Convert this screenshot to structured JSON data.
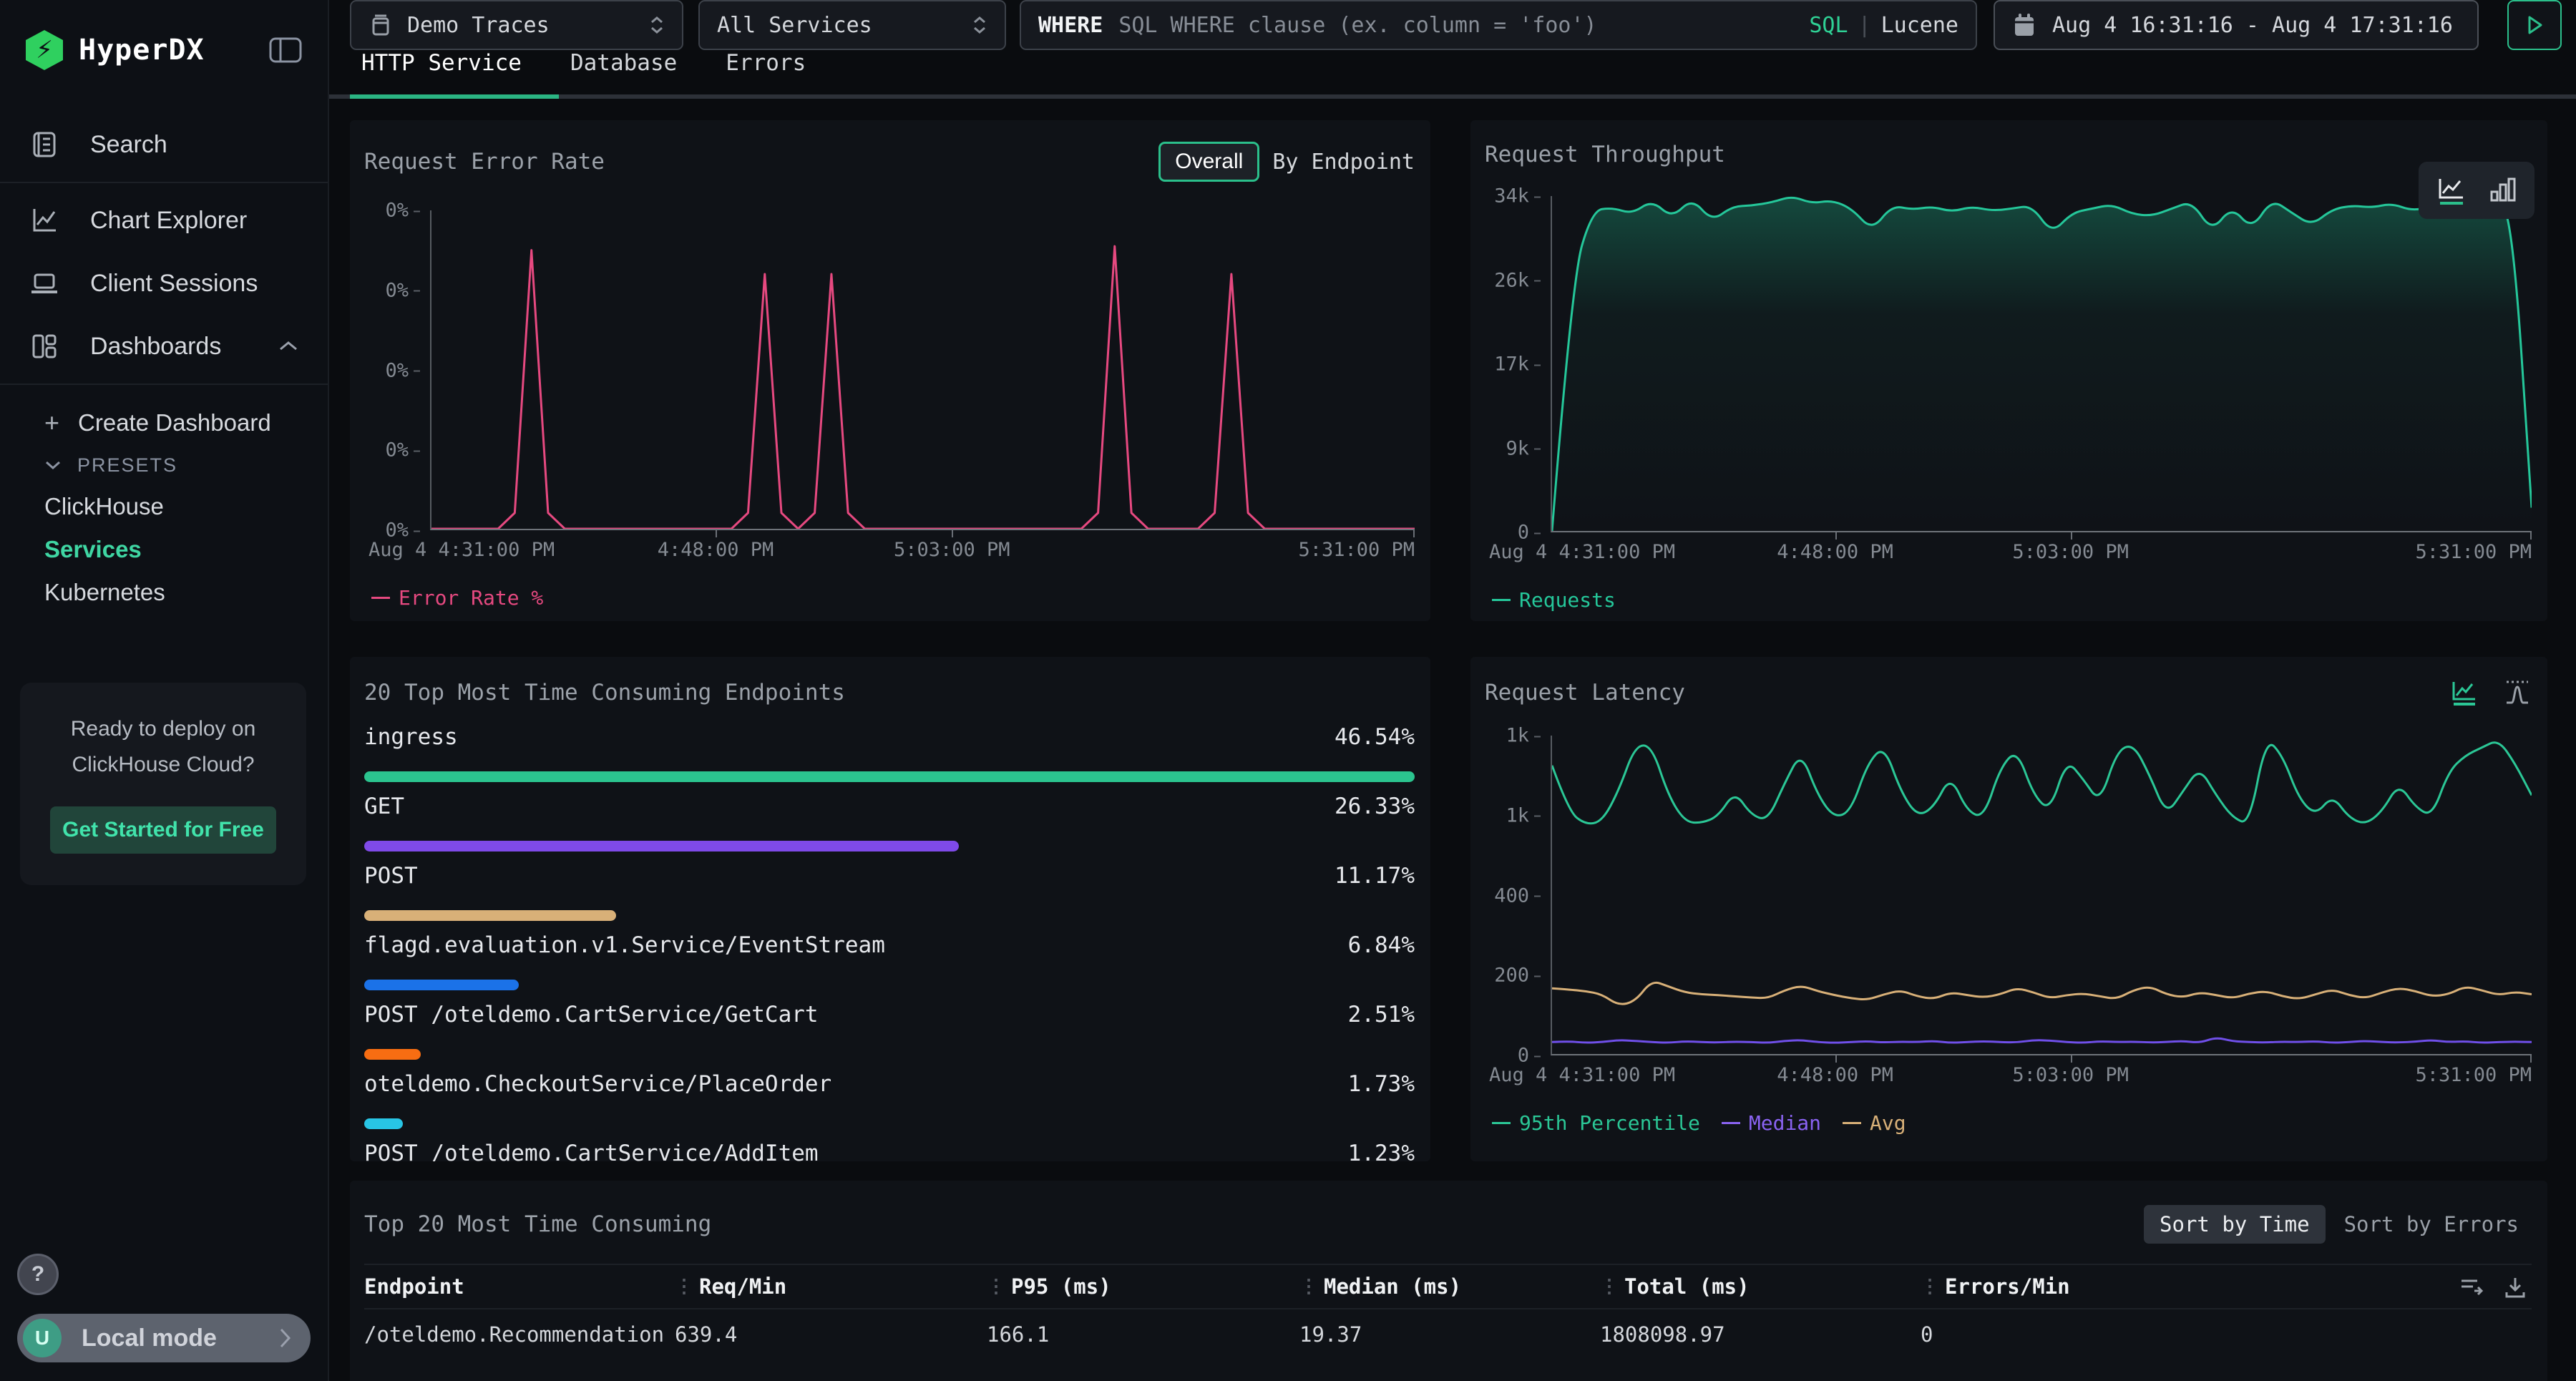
{
  "sidebar": {
    "logo": "HyperDX",
    "nav": [
      {
        "label": "Search"
      },
      {
        "label": "Chart Explorer"
      },
      {
        "label": "Client Sessions"
      },
      {
        "label": "Dashboards"
      }
    ],
    "create_dashboard": "Create Dashboard",
    "presets_label": "PRESETS",
    "presets": [
      {
        "label": "ClickHouse"
      },
      {
        "label": "Services"
      },
      {
        "label": "Kubernetes"
      }
    ],
    "cloud_card": {
      "line1": "Ready to deploy on",
      "line2": "ClickHouse Cloud?",
      "cta": "Get Started for Free"
    },
    "help": "?",
    "user_initial": "U",
    "account_label": "Local mode"
  },
  "topbar": {
    "source": "Demo Traces",
    "service": "All Services",
    "where_label": "WHERE",
    "where_placeholder": "SQL WHERE clause (ex. column = 'foo')",
    "lang_sql": "SQL",
    "lang_sep": "|",
    "lang_lucene": "Lucene",
    "daterange": "Aug 4 16:31:16 - Aug 4 17:31:16"
  },
  "tabs": [
    {
      "label": "HTTP Service"
    },
    {
      "label": "Database"
    },
    {
      "label": "Errors"
    }
  ],
  "panels": {
    "error_rate": {
      "title": "Request Error Rate",
      "toggle": {
        "overall": "Overall",
        "by_endpoint": "By Endpoint"
      },
      "legend": "Error Rate %",
      "color": "#e64980",
      "yticks": [
        "0%",
        "0%",
        "0%",
        "0%",
        "0%"
      ],
      "xticks": [
        "Aug 4 4:31:00 PM",
        "4:48:00 PM",
        "5:03:00 PM",
        "5:31:00 PM"
      ],
      "chart": {
        "ticks": [
          0,
          1,
          2,
          3,
          4
        ],
        "series": [
          {
            "color": "#e64980",
            "smooth": false,
            "values": [
              0,
              0,
              0,
              0,
              0,
              0.2,
              3.5,
              0.2,
              0,
              0,
              0,
              0,
              0,
              0,
              0,
              0,
              0,
              0,
              0,
              0.2,
              3.2,
              0.2,
              0,
              0.2,
              3.2,
              0.2,
              0,
              0,
              0,
              0,
              0,
              0,
              0,
              0,
              0,
              0,
              0,
              0,
              0,
              0,
              0.2,
              3.55,
              0.2,
              0,
              0,
              0,
              0,
              0.2,
              3.2,
              0.2,
              0,
              0,
              0,
              0,
              0,
              0,
              0,
              0,
              0,
              0
            ]
          }
        ]
      }
    },
    "throughput": {
      "title": "Request Throughput",
      "legend": "Requests",
      "color": "#25c79a",
      "yticks": [
        "34k",
        "26k",
        "17k",
        "9k",
        "0"
      ],
      "xticks": [
        "Aug 4 4:31:00 PM",
        "4:48:00 PM",
        "5:03:00 PM",
        "5:31:00 PM"
      ],
      "chart": {
        "ticks": [
          0,
          9,
          17,
          26,
          34
        ],
        "series": [
          {
            "color": "#25c79a",
            "smooth": true,
            "fill": "url(#tp-grad)",
            "values": [
              0,
              26,
              32.6,
              32.9,
              32.3,
              33.6,
              31.9,
              33.8,
              31.6,
              33.0,
              33.1,
              33.4,
              34.1,
              33.3,
              33.6,
              32.8,
              30.7,
              33.1,
              32.7,
              33.0,
              32.5,
              33.0,
              32.6,
              32.8,
              33.1,
              30.4,
              32.4,
              32.8,
              33.2,
              32.3,
              32.1,
              32.8,
              33.5,
              30.6,
              33.0,
              30.8,
              33.7,
              32.4,
              31.2,
              32.7,
              33.1,
              32.9,
              33.3,
              32.6,
              33.0,
              33.2,
              32.9,
              33.2,
              33.0,
              2.5
            ]
          }
        ]
      }
    },
    "endpoints": {
      "title": "20 Top Most Time Consuming Endpoints",
      "items": [
        {
          "label": "ingress",
          "value": "46.54%",
          "width": 100,
          "color": "#2bc48f"
        },
        {
          "label": "GET",
          "value": "26.33%",
          "width": 56.6,
          "color": "#7f4ae8"
        },
        {
          "label": "POST",
          "value": "11.17%",
          "width": 24.0,
          "color": "#d8b078"
        },
        {
          "label": "flagd.evaluation.v1.Service/EventStream",
          "value": "6.84%",
          "width": 14.7,
          "color": "#1b72e8"
        },
        {
          "label": "POST /oteldemo.CartService/GetCart",
          "value": "2.51%",
          "width": 5.4,
          "color": "#f76d12"
        },
        {
          "label": "oteldemo.CheckoutService/PlaceOrder",
          "value": "1.73%",
          "width": 3.7,
          "color": "#28c5e5"
        },
        {
          "label": "POST /oteldemo.CartService/AddItem",
          "value": "1.23%",
          "width": 2.6,
          "color": "#2bc48f"
        }
      ]
    },
    "latency": {
      "title": "Request Latency",
      "yticks": [
        "1k",
        "1k",
        "400",
        "200",
        "0"
      ],
      "xticks": [
        "Aug 4 4:31:00 PM",
        "4:48:00 PM",
        "5:03:00 PM",
        "5:31:00 PM"
      ],
      "legend": [
        {
          "label": "95th Percentile",
          "color": "#2bc796"
        },
        {
          "label": "Median",
          "color": "#8a63f2"
        },
        {
          "label": "Avg",
          "color": "#d8b078"
        }
      ],
      "chart": {
        "ticks": [
          0,
          200,
          400,
          1000,
          1200
        ],
        "series": [
          {
            "color": "#2bc796",
            "smooth": true,
            "values": [
              1125,
              1010,
              930,
              950,
              1060,
              1175,
              1175,
              1050,
              950,
              940,
              990,
              1060,
              1000,
              960,
              1080,
              1160,
              1050,
              980,
              1010,
              1130,
              1175,
              1060,
              990,
              1020,
              1100,
              1010,
              980,
              1120,
              1165,
              1050,
              1010,
              1140,
              1090,
              1030,
              1160,
              1180,
              1100,
              1000,
              1060,
              1120,
              1050,
              980,
              930,
              1195,
              1150,
              1040,
              1000,
              1050,
              980,
              930,
              1010,
              1080,
              1020,
              990,
              1110,
              1150,
              1170,
              1190,
              1130,
              1050
            ]
          },
          {
            "color": "#6f4fe8",
            "smooth": true,
            "values": [
              30,
              32,
              28,
              30,
              35,
              33,
              30,
              28,
              32,
              30,
              29,
              31,
              30,
              28,
              33,
              35,
              30,
              28,
              30,
              32,
              29,
              31,
              30,
              33,
              28,
              30,
              32,
              30,
              29,
              35,
              34,
              30,
              28,
              32,
              30,
              31,
              29,
              30,
              33,
              28,
              42,
              32,
              30,
              29,
              31,
              30,
              32,
              28,
              30,
              33,
              30,
              29,
              31,
              35,
              30,
              32,
              28,
              30,
              31,
              30
            ]
          },
          {
            "color": "#d8b078",
            "smooth": true,
            "values": [
              165,
              162,
              158,
              150,
              122,
              132,
              185,
              170,
              155,
              150,
              148,
              145,
              142,
              140,
              160,
              172,
              158,
              148,
              140,
              136,
              150,
              160,
              145,
              138,
              155,
              148,
              142,
              150,
              166,
              155,
              140,
              148,
              152,
              145,
              138,
              160,
              170,
              150,
              142,
              155,
              148,
              140,
              152,
              158,
              145,
              138,
              150,
              162,
              148,
              140,
              155,
              166,
              158,
              145,
              150,
              170,
              160,
              148,
              156,
              150
            ]
          }
        ]
      }
    },
    "table": {
      "title": "Top 20 Most Time Consuming",
      "sort_time": "Sort by Time",
      "sort_errors": "Sort by Errors",
      "columns": [
        "Endpoint",
        "Req/Min",
        "P95 (ms)",
        "Median (ms)",
        "Total (ms)",
        "Errors/Min"
      ],
      "rows": [
        [
          "/oteldemo.RecommendationServ",
          "639.4",
          "166.1",
          "19.37",
          "1808098.97",
          "0"
        ]
      ]
    }
  }
}
